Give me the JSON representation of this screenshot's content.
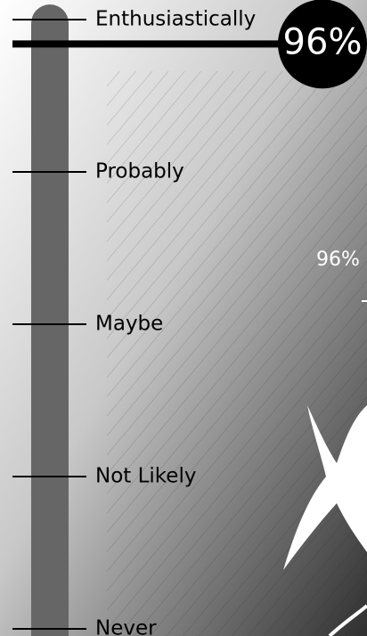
{
  "chart_data": {
    "type": "gauge",
    "values": [
      96
    ],
    "value_labels": [
      "96%"
    ],
    "ylim": [
      0,
      100
    ],
    "yticks": [
      {
        "value": 0,
        "label": "Never"
      },
      {
        "value": 25,
        "label": "Not Likely"
      },
      {
        "value": 50,
        "label": "Maybe"
      },
      {
        "value": 75,
        "label": "Probably"
      },
      {
        "value": 100,
        "label": "Enthusiastically"
      }
    ]
  }
}
